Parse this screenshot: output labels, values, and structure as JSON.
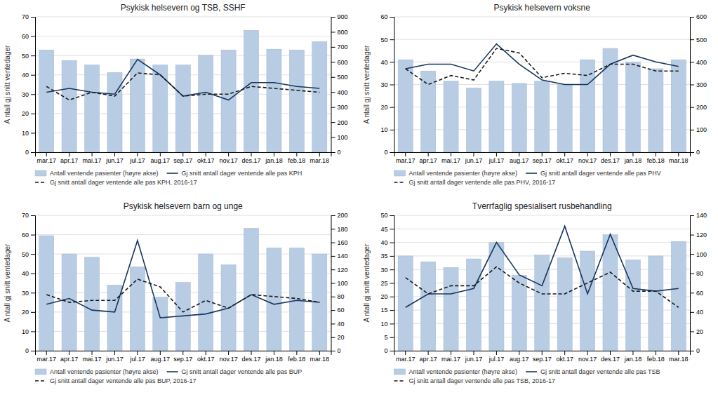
{
  "chart_data": [
    {
      "type": "bar",
      "title": "Psykisk helsevern og TSB, SSHF",
      "categories": [
        "mar.17",
        "apr.17",
        "mai.17",
        "jun.17",
        "jul.17",
        "aug.17",
        "sep.17",
        "okt.17",
        "nov.17",
        "des.17",
        "jan.18",
        "feb.18",
        "mar.18"
      ],
      "ylabel": "A ntall gj snitt ventedager",
      "ylim": [
        0,
        70
      ],
      "yticks": [
        0,
        10,
        20,
        30,
        40,
        50,
        60,
        70
      ],
      "y2lim": [
        0,
        900
      ],
      "y2ticks": [
        0,
        100,
        200,
        300,
        400,
        500,
        600,
        700,
        800,
        900
      ],
      "grid": true,
      "legend": "bottom",
      "series": [
        {
          "name": "Antall ventende pasienter (høyre akse)",
          "type": "bar",
          "axis": "y2",
          "color": "#b8cce4",
          "values": [
            680,
            610,
            580,
            530,
            620,
            580,
            580,
            645,
            680,
            810,
            685,
            680,
            735
          ]
        },
        {
          "name": "Gj snitt antall dager ventende alle pas KPH",
          "type": "line",
          "color": "#17375e",
          "line_style": "solid",
          "values": [
            31,
            33,
            31,
            30,
            48,
            40,
            29,
            31,
            27,
            36,
            36,
            34,
            33
          ]
        },
        {
          "name": "Gj snitt antall dager ventende alle pas KPH, 2016-17",
          "type": "line",
          "color": "#1a1a1a",
          "line_style": "dashed",
          "values": [
            34,
            27,
            31,
            29,
            41,
            40,
            29,
            30,
            30,
            34,
            33,
            32,
            31
          ]
        }
      ]
    },
    {
      "type": "bar",
      "title": "Psykisk helsevern voksne",
      "categories": [
        "mar.17",
        "apr.17",
        "mai.17",
        "jun.17",
        "jul.17",
        "aug.17",
        "sep.17",
        "okt.17",
        "nov.17",
        "des.17",
        "jan.18",
        "feb.18",
        "mar.18"
      ],
      "ylabel": "A ntall gj snitt ventedager",
      "ylim": [
        0,
        60
      ],
      "yticks": [
        0,
        10,
        20,
        30,
        40,
        50,
        60
      ],
      "y2lim": [
        0,
        600
      ],
      "y2ticks": [
        0,
        100,
        200,
        300,
        400,
        500,
        600
      ],
      "grid": true,
      "legend": "bottom",
      "series": [
        {
          "name": "Antall ventende pasienter (høyre akse)",
          "type": "bar",
          "axis": "y2",
          "color": "#b8cce4",
          "values": [
            410,
            360,
            315,
            285,
            315,
            305,
            315,
            300,
            410,
            460,
            400,
            370,
            410
          ]
        },
        {
          "name": "Gj snitt antall dager ventende alle pas PHV",
          "type": "line",
          "color": "#17375e",
          "line_style": "solid",
          "values": [
            37,
            39,
            39,
            36,
            48,
            39,
            32,
            30,
            30,
            39,
            43,
            40,
            38
          ]
        },
        {
          "name": "Gj snitt antall dager ventende alle pas PHV, 2016-17",
          "type": "line",
          "color": "#1a1a1a",
          "line_style": "dashed",
          "values": [
            37,
            30,
            34,
            32,
            46,
            44,
            33,
            35,
            34,
            39,
            39,
            36,
            36
          ]
        }
      ]
    },
    {
      "type": "bar",
      "title": "Psykisk helsevern barn og unge",
      "categories": [
        "mar.17",
        "apr.17",
        "mai.17",
        "jun.17",
        "jul.17",
        "aug.17",
        "sep.17",
        "okt.17",
        "nov.17",
        "des.17",
        "jan.18",
        "feb.18",
        "mar.18"
      ],
      "ylabel": "A ntall gj snitt ventedager",
      "ylim": [
        0,
        70
      ],
      "yticks": [
        0,
        10,
        20,
        30,
        40,
        50,
        60,
        70
      ],
      "y2lim": [
        0,
        200
      ],
      "y2ticks": [
        0,
        20,
        40,
        60,
        80,
        100,
        120,
        140,
        160,
        180,
        200
      ],
      "grid": true,
      "legend": "bottom",
      "series": [
        {
          "name": "Antall ventende pasienter (høyre akse)",
          "type": "bar",
          "axis": "y2",
          "color": "#b8cce4",
          "values": [
            170,
            143,
            138,
            97,
            124,
            79,
            101,
            143,
            127,
            181,
            152,
            152,
            143
          ]
        },
        {
          "name": "Gj snitt antall dager ventende alle pas BUP",
          "type": "line",
          "color": "#17375e",
          "line_style": "solid",
          "values": [
            24,
            27,
            21,
            20,
            57,
            17,
            18,
            19,
            22,
            29,
            24,
            26,
            25
          ]
        },
        {
          "name": "Gj snitt antall dager ventende alle pas BUP, 2016-17",
          "type": "line",
          "color": "#1a1a1a",
          "line_style": "dashed",
          "values": [
            29,
            25,
            26,
            26,
            37,
            33,
            20,
            26,
            22,
            29,
            28,
            27,
            25
          ]
        }
      ]
    },
    {
      "type": "bar",
      "title": "Tverrfaglig spesialisert rusbehandling",
      "categories": [
        "mar.17",
        "apr.17",
        "mai.17",
        "jun.17",
        "jul.17",
        "aug.17",
        "sep.17",
        "okt.17",
        "nov.17",
        "des.17",
        "jan.18",
        "feb.18",
        "mar.18"
      ],
      "ylabel": "A ntall gj snitt ventedager",
      "ylim": [
        0,
        50
      ],
      "yticks": [
        0,
        5,
        10,
        15,
        20,
        25,
        30,
        35,
        40,
        45,
        50
      ],
      "y2lim": [
        0,
        140
      ],
      "y2ticks": [
        0,
        20,
        40,
        60,
        80,
        100,
        120,
        140
      ],
      "grid": true,
      "legend": "bottom",
      "series": [
        {
          "name": "Antall ventende pasienter (høyre akse)",
          "type": "bar",
          "axis": "y2",
          "color": "#b8cce4",
          "values": [
            98,
            92,
            86,
            95,
            112,
            78,
            99,
            96,
            103,
            120,
            94,
            98,
            113
          ]
        },
        {
          "name": "Gj snitt antall dager ventende alle pas TSB",
          "type": "line",
          "color": "#17375e",
          "line_style": "solid",
          "values": [
            16,
            21,
            21,
            23,
            40,
            28,
            24,
            46,
            21,
            43,
            23,
            22,
            23
          ]
        },
        {
          "name": "Gj snitt antall dager ventende alle pas TSB, 2016-17",
          "type": "line",
          "color": "#1a1a1a",
          "line_style": "dashed",
          "values": [
            27,
            21,
            24,
            24,
            31,
            25,
            21,
            21,
            25,
            29,
            22,
            22,
            16
          ]
        }
      ]
    }
  ]
}
